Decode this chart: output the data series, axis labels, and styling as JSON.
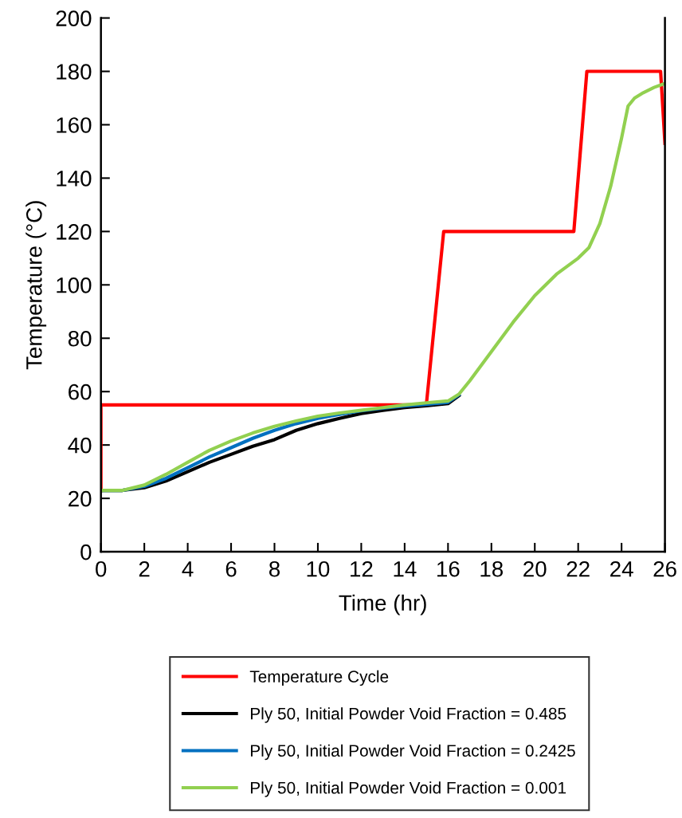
{
  "chart_data": {
    "type": "line",
    "xlabel": "Time (hr)",
    "ylabel": "Temperature (°C)",
    "xlim": [
      0,
      26
    ],
    "xticks": [
      0,
      2,
      4,
      6,
      8,
      10,
      12,
      14,
      16,
      18,
      20,
      22,
      24,
      26
    ],
    "ylim": [
      0,
      200
    ],
    "yticks": [
      0,
      20,
      40,
      60,
      80,
      100,
      120,
      140,
      160,
      180,
      200
    ],
    "grid": false,
    "legend": "bottom",
    "marker": "none",
    "line_style": "solid",
    "series": [
      {
        "name": "Temperature Cycle",
        "color": "#ff0000",
        "x": [
          0,
          0,
          15,
          15.8,
          21.8,
          22.4,
          25.8,
          26
        ],
        "values": [
          23,
          55,
          55,
          120,
          120,
          180,
          180,
          153
        ]
      },
      {
        "name": "Ply 50, Initial Powder Void Fraction = 0.485",
        "color": "#000000",
        "x": [
          0,
          1,
          2,
          3,
          4,
          5,
          6,
          7,
          8,
          9,
          10,
          11,
          12,
          13,
          14,
          15,
          16,
          16.5
        ],
        "values": [
          23,
          23,
          24,
          26.5,
          30,
          33.5,
          36.5,
          39.5,
          42,
          45.5,
          48,
          50,
          51.8,
          53,
          54,
          54.7,
          55.5,
          58.5
        ]
      },
      {
        "name": "Ply 50, Initial Powder Void Fraction = 0.2425",
        "color": "#0070c0",
        "x": [
          0,
          1,
          2,
          3,
          4,
          5,
          6,
          7,
          8,
          9,
          10,
          11,
          12,
          13,
          14,
          15,
          16,
          16.5
        ],
        "values": [
          23,
          23,
          24.5,
          27.5,
          31.5,
          35.5,
          39,
          42.5,
          45.5,
          48,
          50,
          51.5,
          52.8,
          53.8,
          54.6,
          55.2,
          56,
          58.8
        ]
      },
      {
        "name": "Ply 50, Initial Powder Void Fraction = 0.001",
        "color": "#92d050",
        "x": [
          0,
          1,
          2,
          3,
          4,
          5,
          6,
          7,
          8,
          9,
          10,
          11,
          12,
          13,
          14,
          15,
          16,
          16.5,
          17,
          18,
          19,
          20,
          21,
          22,
          22.5,
          23,
          23.5,
          24,
          24.3,
          24.6,
          25,
          25.5,
          26
        ],
        "values": [
          23,
          23,
          25,
          29,
          33.5,
          38,
          41.5,
          44.5,
          47,
          49,
          50.8,
          52,
          53,
          54,
          55,
          55.8,
          56.5,
          59,
          64,
          75,
          86,
          96,
          104,
          110,
          114,
          123,
          137,
          155,
          167,
          170,
          172,
          174,
          175.5
        ]
      }
    ]
  }
}
